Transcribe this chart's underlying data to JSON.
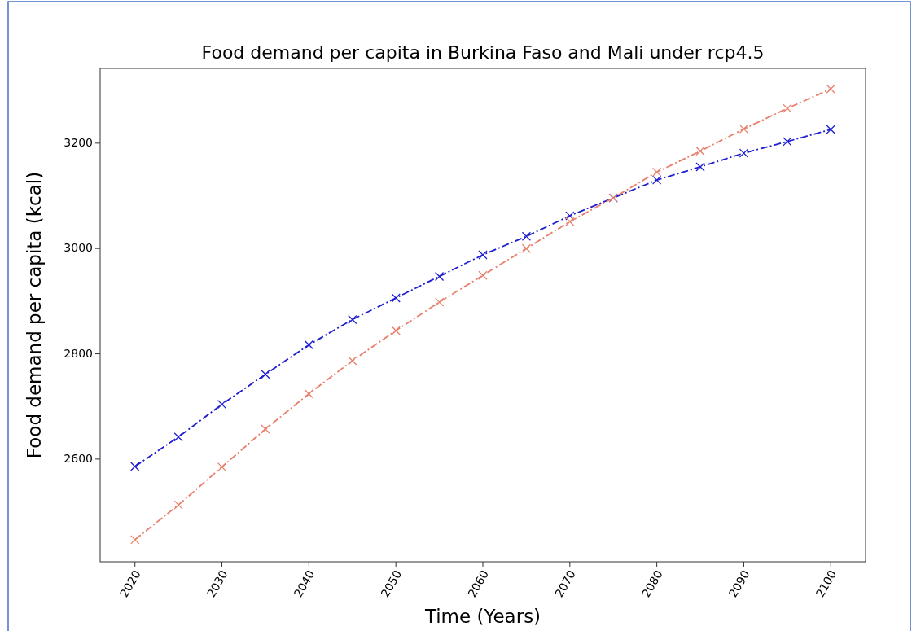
{
  "chart_data": {
    "type": "line",
    "title": "Food demand per capita in Burkina Faso and Mali under rcp4.5",
    "xlabel": "Time (Years)",
    "ylabel": "Food demand per capita (kcal)",
    "x": [
      2020,
      2025,
      2030,
      2035,
      2040,
      2045,
      2050,
      2055,
      2060,
      2065,
      2070,
      2075,
      2080,
      2085,
      2090,
      2095,
      2100
    ],
    "series": [
      {
        "color": "#1f1fd0",
        "values": [
          2586,
          2642,
          2704,
          2761,
          2817,
          2865,
          2906,
          2947,
          2988,
          3023,
          3062,
          3096,
          3130,
          3155,
          3181,
          3203,
          3226
        ]
      },
      {
        "color": "#e8806c",
        "values": [
          2447,
          2513,
          2585,
          2657,
          2724,
          2787,
          2844,
          2898,
          2949,
          3000,
          3051,
          3096,
          3145,
          3185,
          3227,
          3266,
          3303
        ]
      }
    ],
    "xlim": [
      2016,
      2104
    ],
    "ylim": [
      2405,
      3342
    ],
    "xticks": [
      2020,
      2030,
      2040,
      2050,
      2060,
      2070,
      2080,
      2090,
      2100
    ],
    "yticks": [
      2600,
      2800,
      3000,
      3200
    ],
    "grid": false,
    "marker": "cross",
    "line_style": "dashed"
  }
}
